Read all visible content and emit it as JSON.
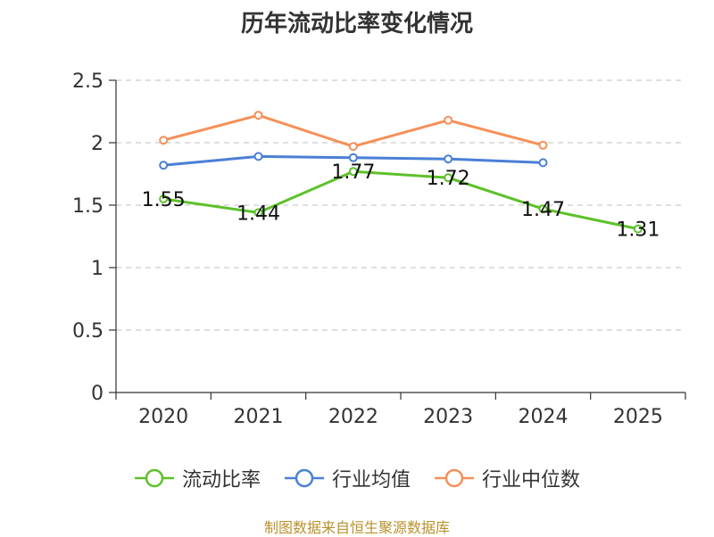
{
  "chart_data": {
    "type": "line",
    "title": "历年流动比率变化情况",
    "categories": [
      "2020",
      "2021",
      "2022",
      "2023",
      "2024",
      "2025"
    ],
    "ylim": [
      0,
      2.5
    ],
    "yticks": [
      "0",
      "0.5",
      "1",
      "1.5",
      "2",
      "2.5"
    ],
    "ytick_values": [
      0,
      0.5,
      1,
      1.5,
      2,
      2.5
    ],
    "grid": true,
    "legend_position": "bottom",
    "series": [
      {
        "name": "流动比率",
        "color": "#5dc12a",
        "values": [
          1.55,
          1.44,
          1.77,
          1.72,
          1.47,
          1.31
        ],
        "labels": [
          "1.55",
          "1.44",
          "1.77",
          "1.72",
          "1.47",
          "1.31"
        ]
      },
      {
        "name": "行业均值",
        "color": "#4a7fd6",
        "values": [
          1.82,
          1.89,
          1.88,
          1.87,
          1.84,
          null
        ]
      },
      {
        "name": "行业中位数",
        "color": "#f59058",
        "values": [
          2.02,
          2.22,
          1.97,
          2.18,
          1.98,
          null
        ]
      }
    ],
    "source": "制图数据来自恒生聚源数据库"
  }
}
